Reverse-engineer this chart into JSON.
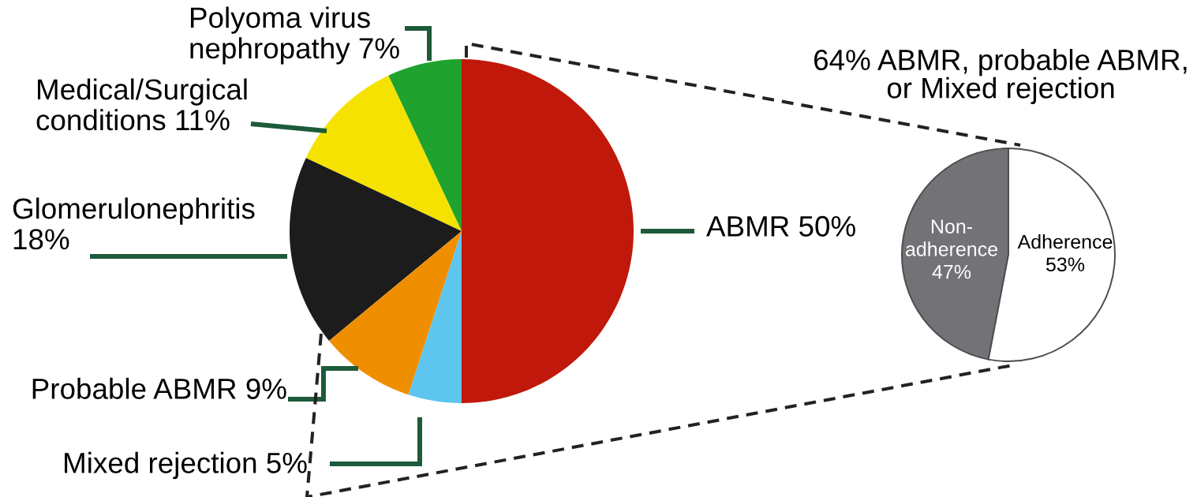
{
  "chart_data": [
    {
      "type": "pie",
      "categories": [
        "Polyoma virus nephropathy",
        "Medical/Surgical conditions",
        "Glomerulonephritis",
        "Probable ABMR",
        "Mixed rejection",
        "ABMR"
      ],
      "values": [
        7,
        11,
        18,
        9,
        5,
        50
      ],
      "value_labels": [
        "7%",
        "11%",
        "18%",
        "9%",
        "5%",
        "50%"
      ],
      "colors": [
        "#20a32e",
        "#f5e200",
        "#1c1c1c",
        "#ef8f00",
        "#5ec5ee",
        "#c0180a"
      ]
    },
    {
      "type": "pie",
      "title": "64% ABMR, probable ABMR, or Mixed rejection",
      "categories": [
        "Non-adherence",
        "Adherence"
      ],
      "values": [
        47,
        53
      ],
      "value_labels": [
        "47%",
        "53%"
      ],
      "colors": [
        "#737277",
        "#ffffff"
      ]
    }
  ]
}
